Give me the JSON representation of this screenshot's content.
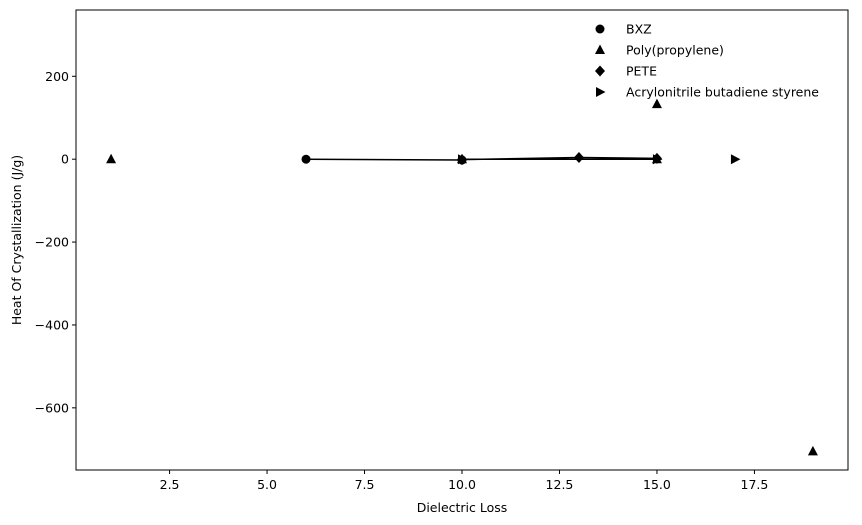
{
  "chart_data": {
    "type": "scatter",
    "title": "",
    "xlabel": "Dielectric Loss",
    "ylabel": "Heat Of Crystallization (J/g)",
    "xlim": [
      0.1,
      19.9
    ],
    "ylim": [
      -750,
      360
    ],
    "xticks": [
      2.5,
      5.0,
      7.5,
      10.0,
      12.5,
      15.0,
      17.5
    ],
    "xtick_labels": [
      "2.5",
      "5.0",
      "7.5",
      "10.0",
      "12.5",
      "15.0",
      "17.5"
    ],
    "yticks": [
      200,
      0,
      -200,
      -400,
      -600
    ],
    "ytick_labels": [
      "200",
      "0",
      "−200",
      "−400",
      "−600"
    ],
    "grid": false,
    "legend_position": "top-right",
    "series": [
      {
        "name": "BXZ",
        "marker": "circle",
        "color": "#000000",
        "x": [
          6,
          10
        ],
        "y": [
          0,
          -2
        ],
        "line_points": [
          [
            6,
            0
          ],
          [
            10,
            -2
          ]
        ]
      },
      {
        "name": "Poly(propylene)",
        "marker": "triangle-up",
        "color": "#000000",
        "x": [
          1,
          10,
          15,
          15,
          19
        ],
        "y": [
          0,
          0,
          133,
          0,
          -705
        ],
        "line_points": []
      },
      {
        "name": "PETE",
        "marker": "diamond",
        "color": "#000000",
        "x": [
          10,
          13,
          15
        ],
        "y": [
          -1,
          4,
          2
        ],
        "line_points": [
          [
            10,
            -1
          ],
          [
            13,
            4
          ],
          [
            15,
            2
          ]
        ]
      },
      {
        "name": "Acrylonitrile butadiene styrene",
        "marker": "triangle-right",
        "color": "#000000",
        "x": [
          10,
          15,
          17
        ],
        "y": [
          0,
          0,
          0
        ],
        "line_points": [
          [
            10,
            0
          ],
          [
            15,
            0
          ]
        ]
      }
    ]
  }
}
